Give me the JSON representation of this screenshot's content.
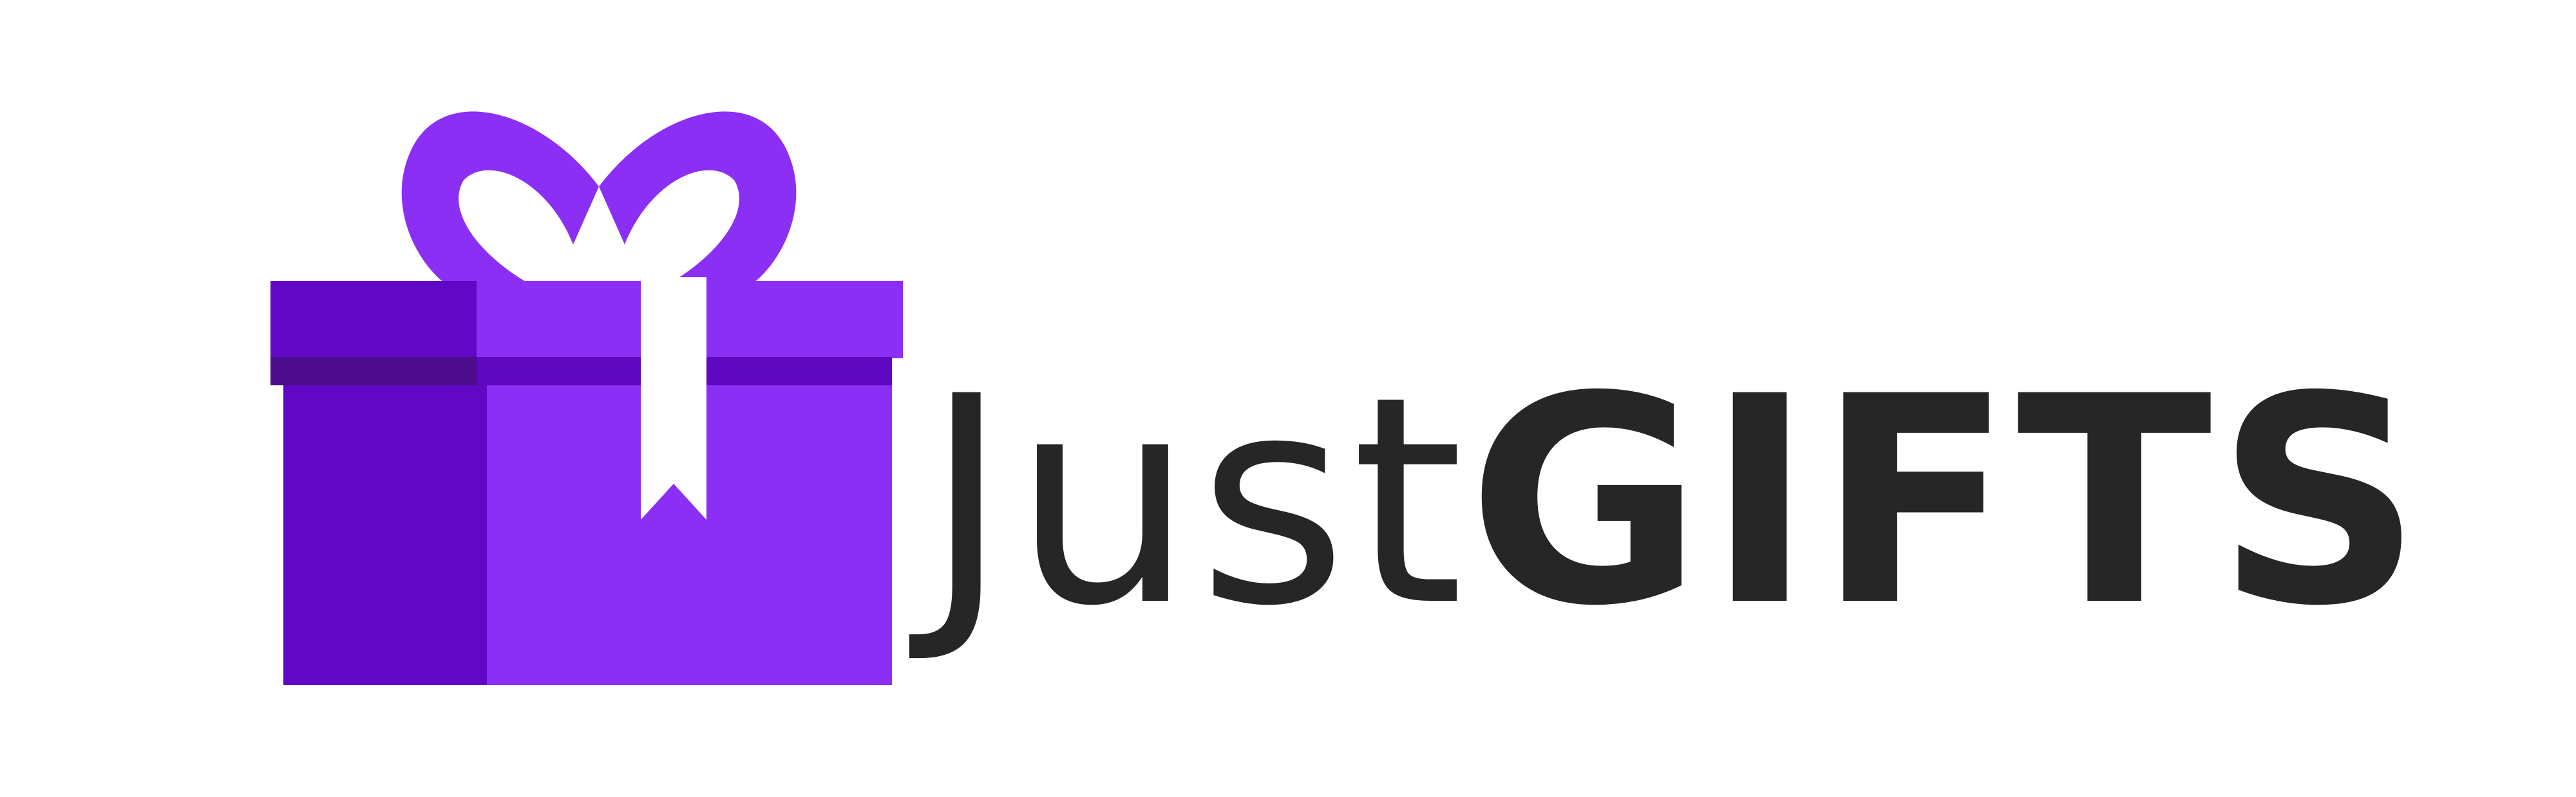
{
  "brand": {
    "name_part1": "Just",
    "name_part2": "GIFTS",
    "text_color": "#262626"
  },
  "icon": {
    "name": "gift-box-icon",
    "colors": {
      "primary": "#8b2ff5",
      "shade": "#6108c6",
      "band": "#4b0d8b",
      "ribbon": "#ffffff"
    }
  }
}
